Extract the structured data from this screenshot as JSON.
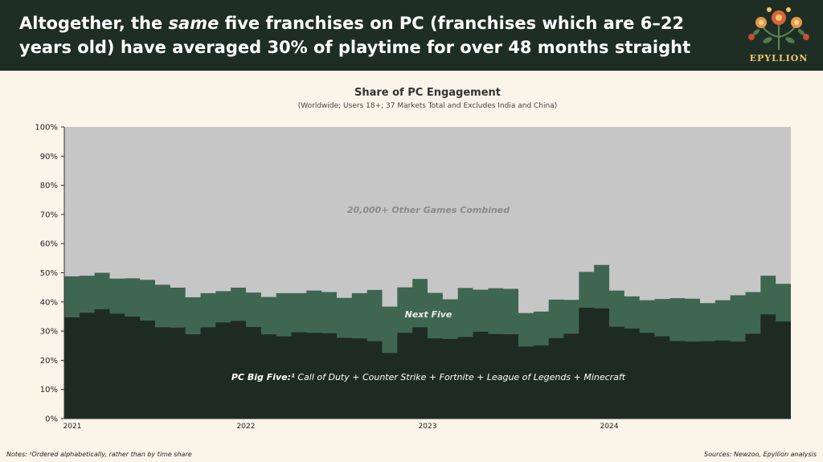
{
  "header": {
    "headline_pre": "Altogether, the ",
    "headline_em": "same",
    "headline_post": " five franchises on PC (franchises which are 6–22 years old) have averaged 30% of playtime for over 48 months straight",
    "logo_text": "EPYLLION"
  },
  "footer": {
    "notes": "Notes: ¹Ordered alphabetically, rather than by time share",
    "sources": "Sources: Newzoo, Epyllion analysis"
  },
  "colors": {
    "big_five": "#1e2b23",
    "next_five": "#3f6650",
    "others": "#c6c6c6",
    "header_bg": "#1f2e25",
    "background": "#fbf4e9"
  },
  "chart_data": {
    "type": "area",
    "title": "Share of PC Engagement",
    "subtitle": "(Worldwide; Users 18+; 37 Markets Total and Excludes India and China)",
    "stacked": true,
    "step": true,
    "ylim": [
      0,
      100
    ],
    "yticks": [
      "0%",
      "10%",
      "20%",
      "30%",
      "40%",
      "50%",
      "60%",
      "70%",
      "80%",
      "90%",
      "100%"
    ],
    "xtick_labels": [
      "2021",
      "2022",
      "2023",
      "2024"
    ],
    "months_per_year": 12,
    "series": [
      {
        "name": "PC Big Five",
        "label_bold": "PC Big Five:¹",
        "label_rest": " Call of Duty + Counter Strike + Fortnite + League of Legends + Minecraft",
        "values": [
          34.7,
          36.3,
          37.5,
          36.0,
          35.0,
          33.6,
          31.3,
          31.2,
          28.9,
          31.3,
          33.0,
          33.5,
          31.4,
          28.9,
          28.2,
          29.6,
          29.4,
          29.3,
          27.7,
          27.5,
          26.5,
          22.5,
          29.4,
          31.3,
          27.5,
          27.3,
          28.0,
          29.8,
          29.0,
          28.9,
          24.7,
          25.1,
          27.6,
          29.1,
          38.0,
          37.8,
          31.5,
          30.9,
          29.4,
          28.2,
          26.6,
          26.4,
          26.5,
          26.8,
          26.4,
          29.1,
          35.7,
          33.3
        ]
      },
      {
        "name": "Next Five",
        "label": "Next Five",
        "values": [
          14.1,
          12.7,
          12.5,
          12.0,
          13.1,
          14.0,
          14.6,
          13.7,
          12.7,
          11.7,
          10.7,
          11.4,
          11.8,
          12.8,
          14.8,
          13.4,
          14.5,
          14.1,
          13.7,
          15.5,
          17.6,
          15.9,
          15.6,
          16.6,
          15.6,
          13.6,
          16.8,
          14.4,
          15.7,
          15.6,
          11.5,
          11.6,
          13.2,
          11.6,
          12.3,
          14.9,
          12.4,
          11.0,
          11.2,
          12.8,
          14.7,
          14.7,
          13.1,
          13.8,
          15.9,
          14.3,
          13.3,
          12.9
        ]
      },
      {
        "name": "20,000+ Other Games Combined",
        "label": "20,000+ Other Games Combined",
        "values": "remainder to 100%"
      }
    ]
  }
}
